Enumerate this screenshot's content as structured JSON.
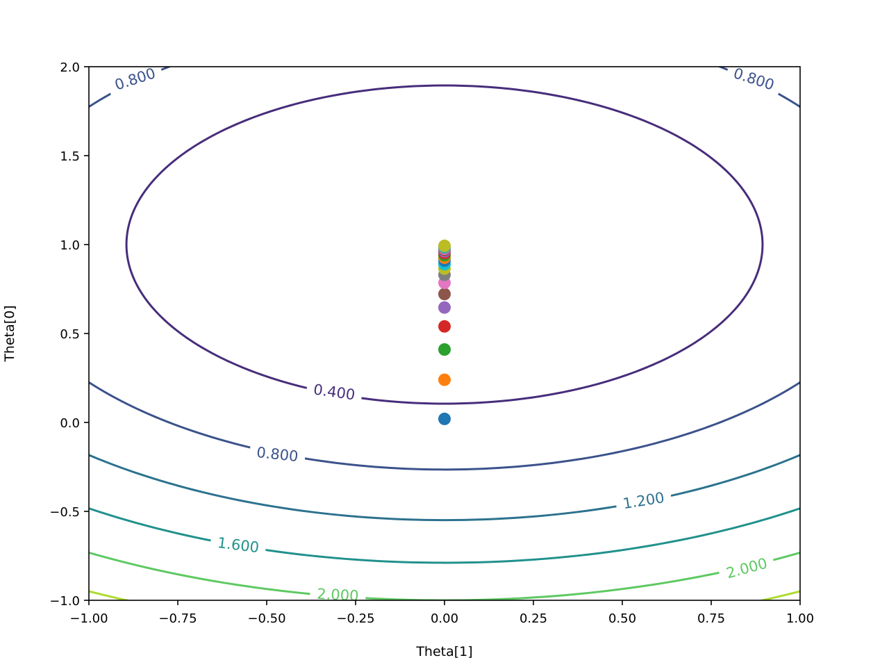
{
  "chart_data": {
    "type": "contour",
    "title": "",
    "xlabel": "Theta[1]",
    "ylabel": "Theta[0]",
    "xlim": [
      -1.0,
      1.0
    ],
    "ylim": [
      -1.0,
      2.0
    ],
    "x_ticks": [
      -1.0,
      -0.75,
      -0.5,
      -0.25,
      0.0,
      0.25,
      0.5,
      0.75,
      1.0
    ],
    "x_tick_labels": [
      "−1.00",
      "−0.75",
      "−0.50",
      "−0.25",
      "0.00",
      "0.25",
      "0.50",
      "0.75",
      "1.00"
    ],
    "y_ticks": [
      -1.0,
      -0.5,
      0.0,
      0.5,
      1.0,
      1.5,
      2.0
    ],
    "y_tick_labels": [
      "−1.0",
      "−0.5",
      "0.0",
      "0.5",
      "1.0",
      "1.5",
      "2.0"
    ],
    "grid": false,
    "contour_levels": [
      {
        "value": 0.4,
        "label": "0.400",
        "color": "#472d7b"
      },
      {
        "value": 0.8,
        "label": "0.800",
        "color": "#3b528b"
      },
      {
        "value": 1.2,
        "label": "1.200",
        "color": "#2c728e"
      },
      {
        "value": 1.6,
        "label": "1.600",
        "color": "#21918c"
      },
      {
        "value": 2.0,
        "label": "2.000",
        "color": "#5ec962"
      },
      {
        "value": 2.4,
        "label": "",
        "color": "#addc30"
      }
    ],
    "contour_labels": [
      {
        "text": "0.800",
        "x": -0.87,
        "y": 1.93,
        "angle": -18,
        "level": 0.8
      },
      {
        "text": "0.800",
        "x": 0.87,
        "y": 1.93,
        "angle": 18,
        "level": 0.8
      },
      {
        "text": "0.400",
        "x": -0.31,
        "y": 0.17,
        "angle": 8,
        "level": 0.4
      },
      {
        "text": "0.800",
        "x": -0.47,
        "y": -0.18,
        "angle": 6,
        "level": 0.8
      },
      {
        "text": "1.200",
        "x": 0.56,
        "y": -0.44,
        "angle": -9,
        "level": 1.2
      },
      {
        "text": "1.600",
        "x": -0.58,
        "y": -0.69,
        "angle": 7,
        "level": 1.6
      },
      {
        "text": "2.000",
        "x": 0.85,
        "y": -0.82,
        "angle": -15,
        "level": 2.0
      },
      {
        "text": "2.000",
        "x": -0.3,
        "y": -0.97,
        "angle": 3,
        "level": 2.0
      }
    ],
    "points": [
      {
        "x": 0.0,
        "y": 0.02,
        "color": "#1f77b4"
      },
      {
        "x": 0.0,
        "y": 0.24,
        "color": "#ff7f0e"
      },
      {
        "x": 0.0,
        "y": 0.41,
        "color": "#2ca02c"
      },
      {
        "x": 0.0,
        "y": 0.54,
        "color": "#d62728"
      },
      {
        "x": 0.0,
        "y": 0.646,
        "color": "#9467bd"
      },
      {
        "x": 0.0,
        "y": 0.722,
        "color": "#8c564b"
      },
      {
        "x": 0.0,
        "y": 0.785,
        "color": "#e377c2"
      },
      {
        "x": 0.0,
        "y": 0.83,
        "color": "#7f7f7f"
      },
      {
        "x": 0.0,
        "y": 0.865,
        "color": "#bcbd22"
      },
      {
        "x": 0.0,
        "y": 0.89,
        "color": "#17becf"
      },
      {
        "x": 0.0,
        "y": 0.91,
        "color": "#1f77b4"
      },
      {
        "x": 0.0,
        "y": 0.926,
        "color": "#ff7f0e"
      },
      {
        "x": 0.0,
        "y": 0.94,
        "color": "#2ca02c"
      },
      {
        "x": 0.0,
        "y": 0.952,
        "color": "#d62728"
      },
      {
        "x": 0.0,
        "y": 0.962,
        "color": "#9467bd"
      },
      {
        "x": 0.0,
        "y": 0.97,
        "color": "#8c564b"
      },
      {
        "x": 0.0,
        "y": 0.977,
        "color": "#e377c2"
      },
      {
        "x": 0.0,
        "y": 0.983,
        "color": "#7f7f7f"
      },
      {
        "x": 0.0,
        "y": 0.988,
        "color": "#17becf"
      },
      {
        "x": 0.0,
        "y": 0.993,
        "color": "#bcbd22"
      }
    ]
  }
}
